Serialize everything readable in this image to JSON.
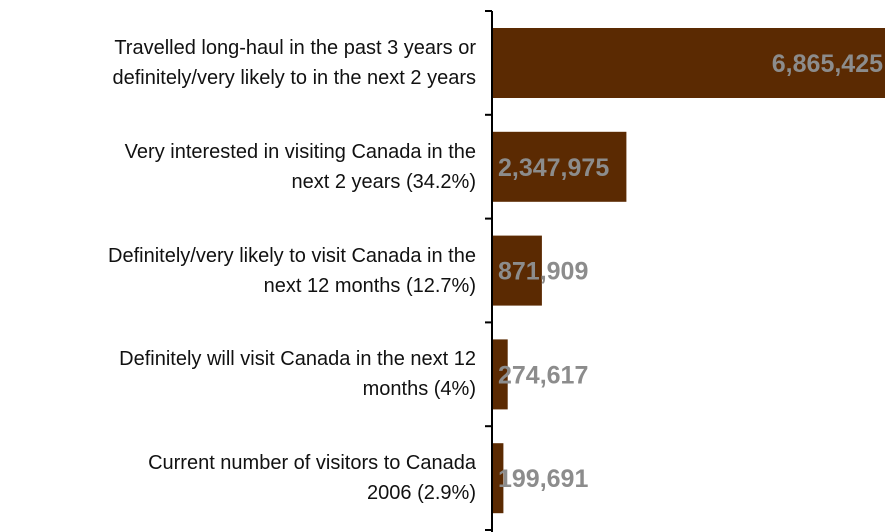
{
  "chart_data": {
    "type": "bar",
    "orientation": "horizontal",
    "categories": [
      "Travelled long-haul in the past 3 years or definitely/very likely to in the next 2 years",
      "Very interested in visiting Canada in the next 2 years (34.2%)",
      "Definitely/very likely to visit Canada in the next 12 months (12.7%)",
      "Definitely will visit Canada in the next 12 months (4%)",
      "Current number of visitors to Canada 2006 (2.9%)"
    ],
    "label_lines": [
      [
        "Travelled long-haul in the past 3 years or",
        "definitely/very likely to in the next 2 years"
      ],
      [
        "Very interested in visiting Canada in the",
        "next 2 years (34.2%)"
      ],
      [
        "Definitely/very likely to visit Canada in the",
        "next 12 months (12.7%)"
      ],
      [
        "Definitely will visit Canada in the next 12",
        "months (4%)"
      ],
      [
        "Current number of visitors to Canada",
        "2006 (2.9%)"
      ]
    ],
    "values": [
      6865425,
      2347975,
      871909,
      274617,
      199691
    ],
    "data_labels": [
      "6,865,425",
      "2,347,975",
      "871,909",
      "274,617",
      "199,691"
    ],
    "xlim": [
      0,
      6865425
    ],
    "grid": false,
    "legend": "none",
    "colors": {
      "bar": "#5b2a02",
      "data_label": "#8c8c8c",
      "axis": "#000000"
    }
  }
}
